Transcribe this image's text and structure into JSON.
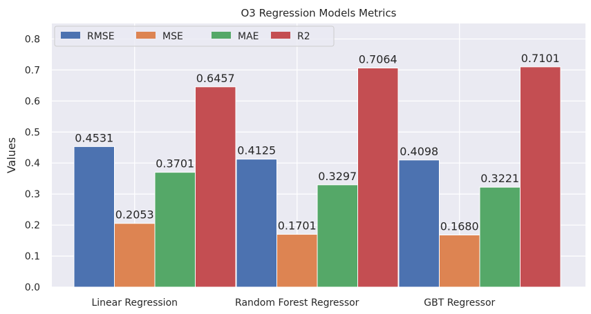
{
  "chart_data": {
    "type": "bar",
    "title": "O3 Regression Models Metrics",
    "xlabel": "",
    "ylabel": "Values",
    "categories": [
      "Linear Regression",
      "Random Forest Regressor",
      "GBT Regressor"
    ],
    "series": [
      {
        "name": "RMSE",
        "color": "#4c72b0",
        "values": [
          0.4531,
          0.4125,
          0.4098
        ],
        "labels": [
          "0.4531",
          "0.4125",
          "0.4098"
        ]
      },
      {
        "name": "MSE",
        "color": "#dd8452",
        "values": [
          0.2053,
          0.1701,
          0.168
        ],
        "labels": [
          "0.2053",
          "0.1701",
          "0.1680"
        ]
      },
      {
        "name": "MAE",
        "color": "#55a868",
        "values": [
          0.3701,
          0.3297,
          0.3221
        ],
        "labels": [
          "0.3701",
          "0.3297",
          "0.3221"
        ]
      },
      {
        "name": "R2",
        "color": "#c44e52",
        "values": [
          0.6457,
          0.7064,
          0.7101
        ],
        "labels": [
          "0.6457",
          "0.7064",
          "0.7101"
        ]
      }
    ],
    "ylim": [
      0,
      0.85
    ],
    "yticks": [
      "0.0",
      "0.1",
      "0.2",
      "0.3",
      "0.4",
      "0.5",
      "0.6",
      "0.7",
      "0.8"
    ],
    "grid": true,
    "legend": "top-left",
    "background": "#eaeaf2"
  }
}
